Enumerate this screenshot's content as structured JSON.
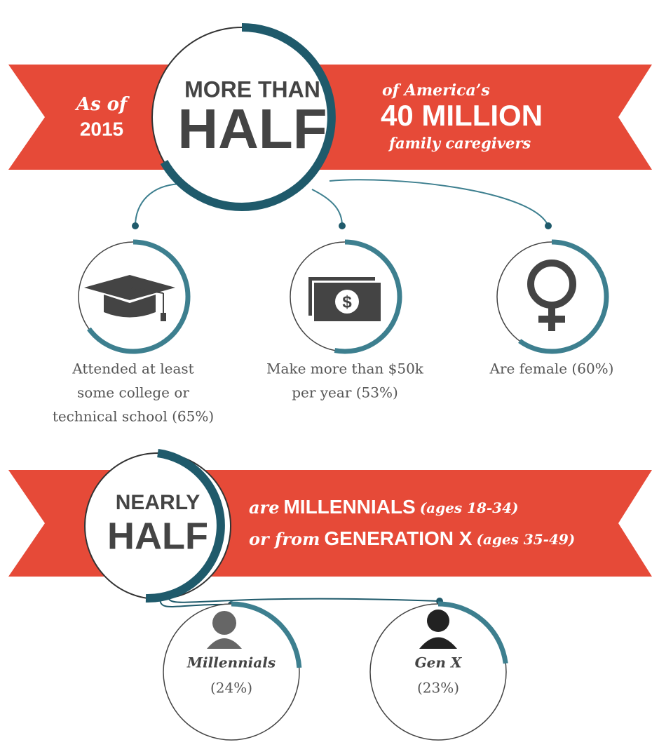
{
  "ribbon1": {
    "left": [
      "As of",
      "2015"
    ],
    "circle": [
      "MORE THAN",
      "HALF"
    ],
    "right": [
      "of America’s",
      "40 MILLION",
      "family caregivers"
    ]
  },
  "stats": [
    {
      "label_lines": [
        "Attended at least",
        "some college or",
        "technical school (65%)"
      ],
      "value": 65
    },
    {
      "label_lines": [
        "Make more than $50k",
        "per year (53%)"
      ],
      "value": 53
    },
    {
      "label_lines": [
        "Are female (60%)"
      ],
      "value": 60
    }
  ],
  "ribbon2": {
    "circle": [
      "NEARLY",
      "HALF"
    ],
    "line1": [
      "are",
      "MILLENNIALS",
      "(ages 18-34)"
    ],
    "line2": [
      "or from",
      "GENERATION X",
      "(ages 35-49)"
    ]
  },
  "generations": [
    {
      "name": "Millennials",
      "value": 24,
      "value_label": "(24%)"
    },
    {
      "name": "Gen X",
      "value": 23,
      "value_label": "(23%)"
    }
  ]
}
